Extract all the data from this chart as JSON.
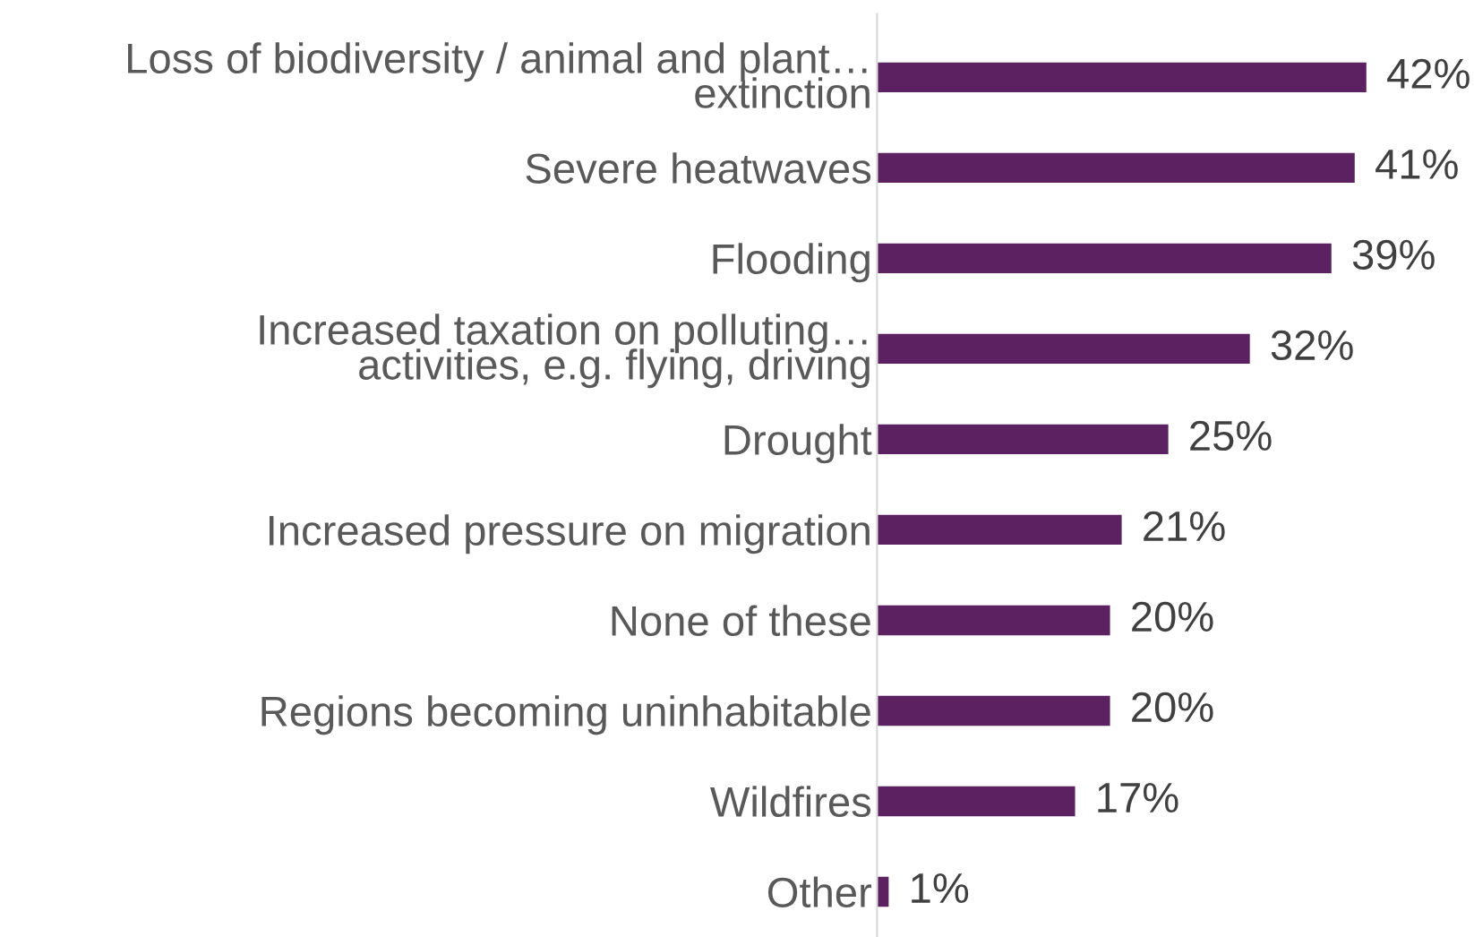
{
  "chart_data": {
    "type": "bar",
    "orientation": "horizontal",
    "categories": [
      "Loss of biodiversity / animal and plant…\nextinction",
      "Severe heatwaves",
      "Flooding",
      "Increased taxation on polluting…\nactivities, e.g. flying, driving",
      "Drought",
      "Increased pressure on migration",
      "None of these",
      "Regions becoming uninhabitable",
      "Wildfires",
      "Other"
    ],
    "values": [
      42,
      41,
      39,
      32,
      25,
      21,
      20,
      20,
      17,
      1
    ],
    "value_labels": [
      "42%",
      "41%",
      "39%",
      "32%",
      "25%",
      "21%",
      "20%",
      "20%",
      "17%",
      "1%"
    ],
    "color": "#5c2161",
    "grid": false
  }
}
